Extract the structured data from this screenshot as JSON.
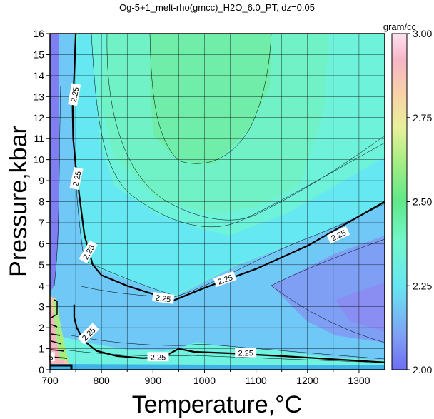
{
  "chart_data": {
    "type": "contour",
    "title": "Og-5+1_melt-rho(gmcc)_H2O_6.0_PT, dz=0.05",
    "xlabel": "Temperature,°C",
    "ylabel": "Pressure,kbar",
    "xlim": [
      700,
      1350
    ],
    "ylim": [
      0,
      16
    ],
    "xticks": [
      "700",
      "800",
      "900",
      "1000",
      "1100",
      "1200",
      "1300"
    ],
    "yticks": [
      "0",
      "1",
      "2",
      "3",
      "4",
      "5",
      "6",
      "7",
      "8",
      "9",
      "10",
      "11",
      "12",
      "13",
      "14",
      "15",
      "16"
    ],
    "grid": true,
    "colorbar": {
      "unit": "gram/cc",
      "range": [
        2.0,
        3.0
      ],
      "ticks": [
        "2.00",
        "2.25",
        "2.50",
        "2.75",
        "3.00"
      ]
    },
    "contour_labels": [
      "2.25",
      "2.25",
      "2.25",
      "2.25",
      "2.25",
      "2.25",
      "2.25",
      "2.25",
      "2.25",
      "5"
    ],
    "contour_2_25": {
      "upper_branch": [
        [
          750,
          16
        ],
        [
          747,
          14
        ],
        [
          744,
          12.5
        ],
        [
          745,
          11
        ],
        [
          750,
          9.7
        ],
        [
          757,
          8.3
        ],
        [
          767,
          6.4
        ],
        [
          783,
          5.0
        ],
        [
          800,
          4.5
        ],
        [
          850,
          4.0
        ],
        [
          900,
          3.6
        ],
        [
          940,
          3.3
        ],
        [
          1000,
          3.9
        ],
        [
          1100,
          4.8
        ],
        [
          1200,
          5.9
        ],
        [
          1300,
          7.3
        ],
        [
          1350,
          8.0
        ]
      ],
      "lower_branch": [
        [
          747,
          3.1
        ],
        [
          747,
          2.5
        ],
        [
          752,
          2.0
        ],
        [
          765,
          1.4
        ],
        [
          790,
          0.9
        ],
        [
          830,
          0.65
        ],
        [
          880,
          0.55
        ],
        [
          920,
          0.6
        ],
        [
          950,
          1.0
        ],
        [
          980,
          0.85
        ],
        [
          1050,
          0.78
        ],
        [
          1150,
          0.65
        ],
        [
          1250,
          0.5
        ],
        [
          1350,
          0.35
        ]
      ]
    }
  }
}
